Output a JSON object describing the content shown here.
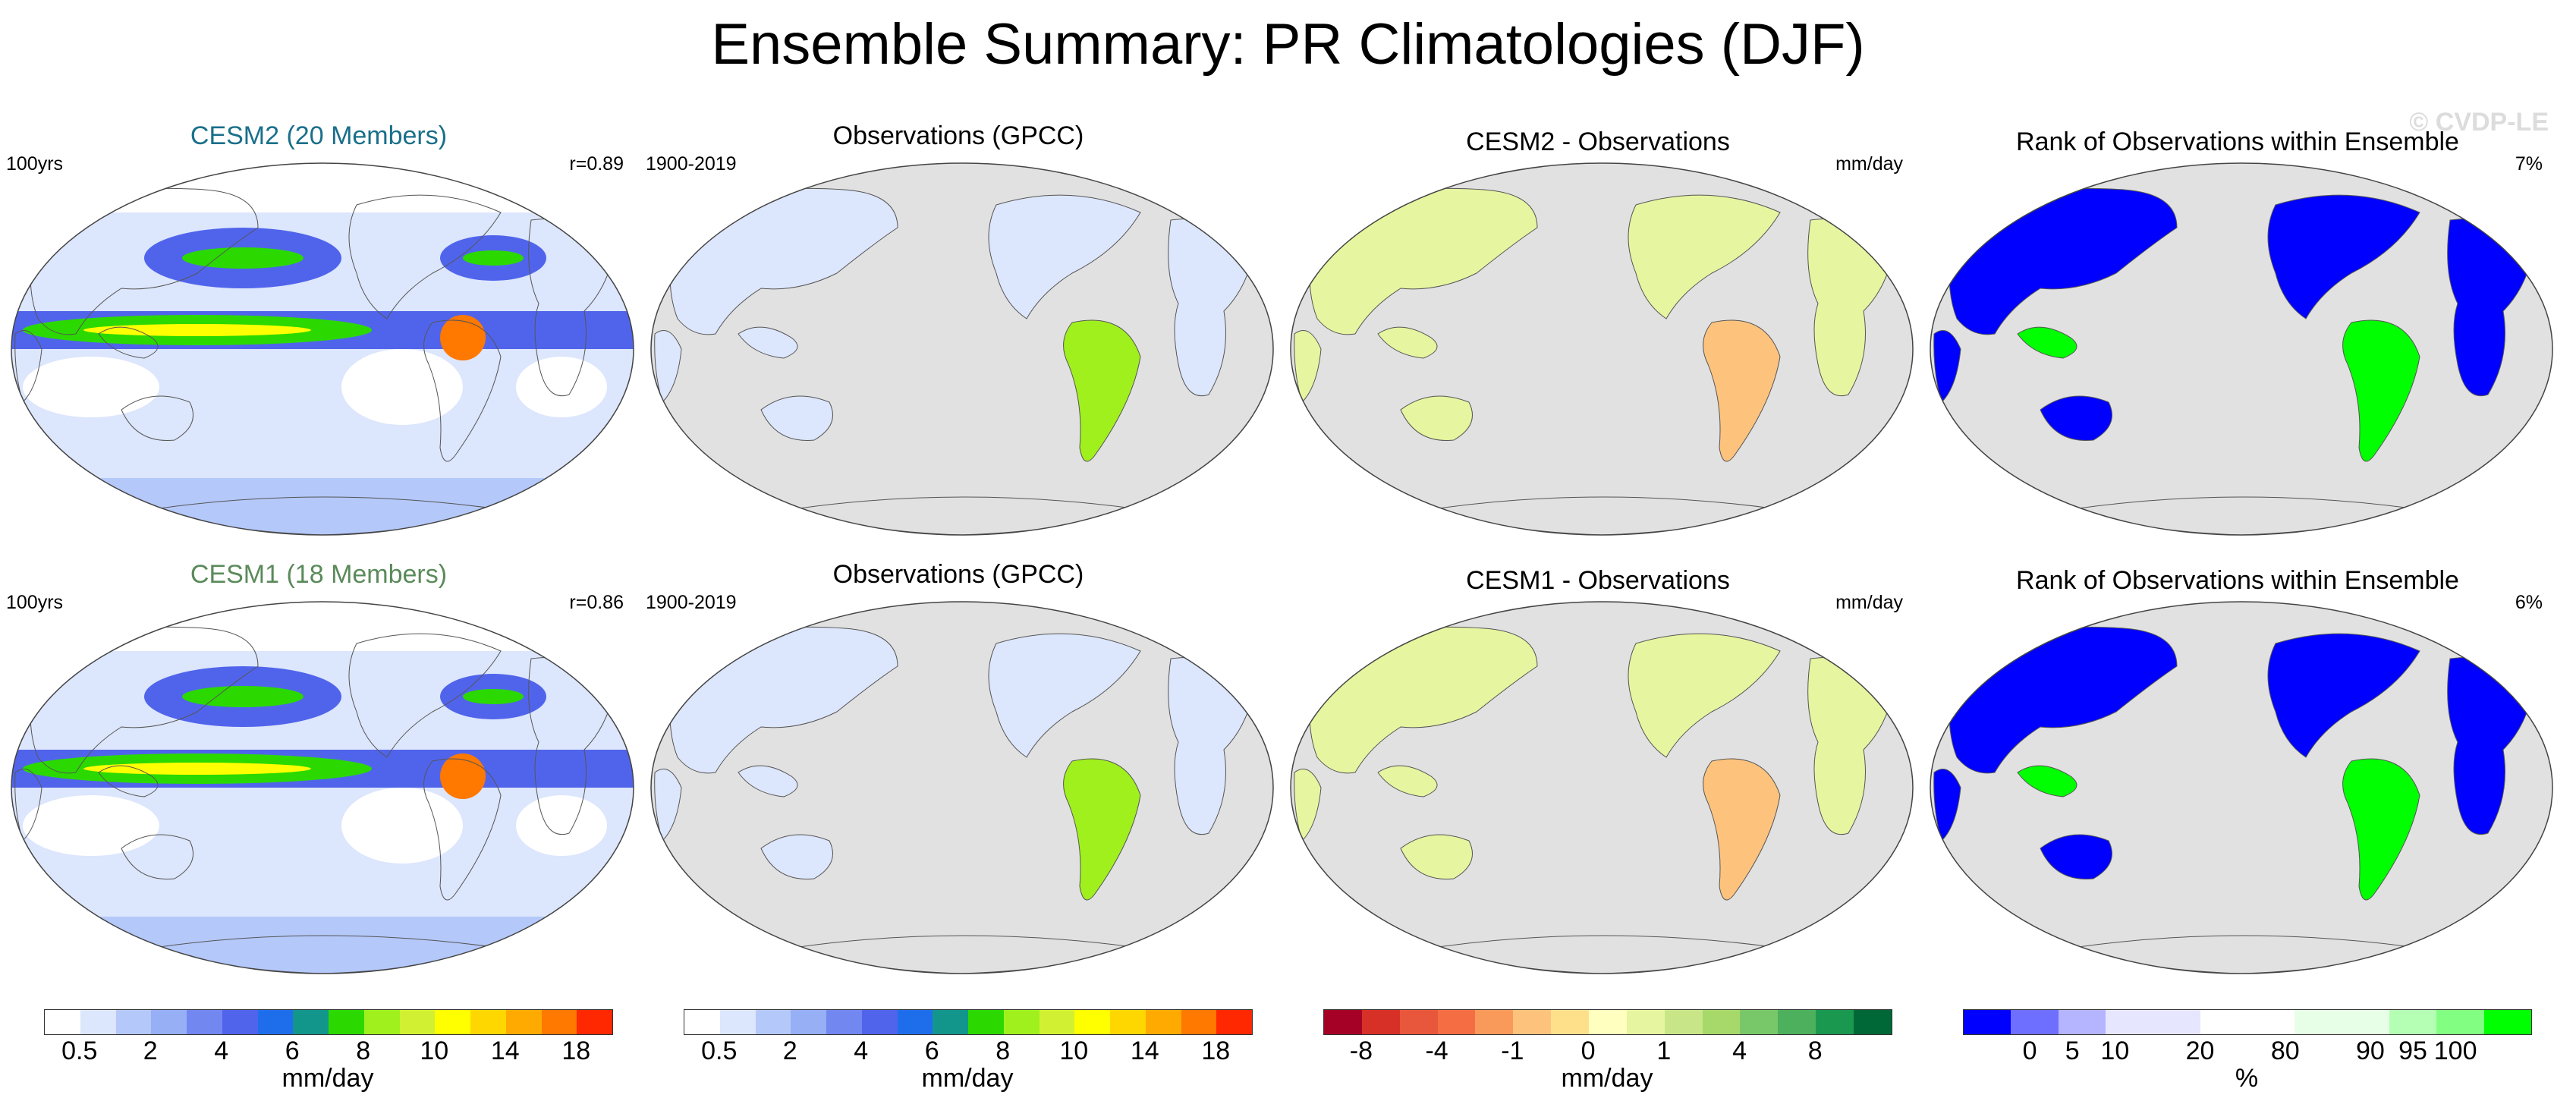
{
  "figure": {
    "title": "Ensemble Summary: PR Climatologies (DJF)",
    "watermark": "© CVDP-LE"
  },
  "rows": [
    {
      "panels": [
        {
          "title": "CESM2 (20 Members)",
          "title_color": "#1a6f8a",
          "left": "100yrs",
          "right": "r=0.89",
          "kind": "model"
        },
        {
          "title": "Observations (GPCC)",
          "title_color": "#000000",
          "left": "1900-2019",
          "right": "",
          "kind": "obs"
        },
        {
          "title": "CESM2 - Observations",
          "title_color": "#000000",
          "left": "",
          "right": "mm/day",
          "kind": "diff"
        },
        {
          "title": "Rank of Observations within Ensemble",
          "title_color": "#000000",
          "left": "",
          "right": "7%",
          "kind": "rank"
        }
      ]
    },
    {
      "panels": [
        {
          "title": "CESM1 (18 Members)",
          "title_color": "#5a8a5a",
          "left": "100yrs",
          "right": "r=0.86",
          "kind": "model"
        },
        {
          "title": "Observations (GPCC)",
          "title_color": "#000000",
          "left": "1900-2019",
          "right": "",
          "kind": "obs"
        },
        {
          "title": "CESM1 - Observations",
          "title_color": "#000000",
          "left": "",
          "right": "mm/day",
          "kind": "diff"
        },
        {
          "title": "Rank of Observations within Ensemble",
          "title_color": "#000000",
          "left": "",
          "right": "6%",
          "kind": "rank"
        }
      ]
    }
  ],
  "colorbars": [
    {
      "name": "precip-model",
      "colors": [
        "#ffffff",
        "#dce6fc",
        "#b4c8fa",
        "#96aff5",
        "#7387f0",
        "#5064eb",
        "#1e6eeb",
        "#12968c",
        "#2bd900",
        "#a0f01e",
        "#d2f032",
        "#ffff00",
        "#ffd700",
        "#ffaa00",
        "#ff7800",
        "#ff2800"
      ],
      "ticks": [
        "0.5",
        "2",
        "4",
        "6",
        "8",
        "10",
        "14",
        "18"
      ],
      "unit": "mm/day"
    },
    {
      "name": "precip-obs",
      "colors": [
        "#ffffff",
        "#dce6fc",
        "#b4c8fa",
        "#96aff5",
        "#7387f0",
        "#5064eb",
        "#1e6eeb",
        "#12968c",
        "#2bd900",
        "#a0f01e",
        "#d2f032",
        "#ffff00",
        "#ffd700",
        "#ffaa00",
        "#ff7800",
        "#ff2800"
      ],
      "ticks": [
        "0.5",
        "2",
        "4",
        "6",
        "8",
        "10",
        "14",
        "18"
      ],
      "unit": "mm/day"
    },
    {
      "name": "difference",
      "colors": [
        "#a50026",
        "#d73027",
        "#e8573c",
        "#f46d43",
        "#fa9a5a",
        "#fdc37d",
        "#fee08b",
        "#ffffbf",
        "#e6f5a0",
        "#c8e687",
        "#a6d96a",
        "#78c869",
        "#4cb05c",
        "#1a9850",
        "#006837"
      ],
      "ticks": [
        "-8",
        "-4",
        "-1",
        "0",
        "1",
        "4",
        "8"
      ],
      "unit": "mm/day"
    },
    {
      "name": "rank",
      "colors": [
        "#0000ff",
        "#6e6eff",
        "#b4b4ff",
        "#e6e6ff",
        "#e6e6ff",
        "#ffffff",
        "#ffffff",
        "#e6ffe6",
        "#e6ffe6",
        "#b4ffb4",
        "#82ff82",
        "#00ff00"
      ],
      "ticks": [
        "0",
        "5",
        "10",
        "20",
        "80",
        "90",
        "95",
        "100"
      ],
      "unit": "%"
    }
  ],
  "chart_data": [
    {
      "type": "heatmap",
      "title": "CESM2 (20 Members)",
      "subtitle_left": "100yrs",
      "subtitle_right": "r=0.89",
      "units": "mm/day",
      "levels": [
        0.5,
        2,
        4,
        6,
        8,
        10,
        14,
        18
      ]
    },
    {
      "type": "heatmap",
      "title": "Observations (GPCC)",
      "subtitle_left": "1900-2019",
      "units": "mm/day",
      "levels": [
        0.5,
        2,
        4,
        6,
        8,
        10,
        14,
        18
      ]
    },
    {
      "type": "heatmap",
      "title": "CESM2 - Observations",
      "units": "mm/day",
      "levels": [
        -8,
        -4,
        -1,
        0,
        1,
        4,
        8
      ]
    },
    {
      "type": "heatmap",
      "title": "Rank of Observations within Ensemble",
      "subtitle_right": "7%",
      "units": "%",
      "levels": [
        0,
        5,
        10,
        20,
        80,
        90,
        95,
        100
      ]
    },
    {
      "type": "heatmap",
      "title": "CESM1 (18 Members)",
      "subtitle_left": "100yrs",
      "subtitle_right": "r=0.86",
      "units": "mm/day",
      "levels": [
        0.5,
        2,
        4,
        6,
        8,
        10,
        14,
        18
      ]
    },
    {
      "type": "heatmap",
      "title": "Observations (GPCC)",
      "subtitle_left": "1900-2019",
      "units": "mm/day",
      "levels": [
        0.5,
        2,
        4,
        6,
        8,
        10,
        14,
        18
      ]
    },
    {
      "type": "heatmap",
      "title": "CESM1 - Observations",
      "units": "mm/day",
      "levels": [
        -8,
        -4,
        -1,
        0,
        1,
        4,
        8
      ]
    },
    {
      "type": "heatmap",
      "title": "Rank of Observations within Ensemble",
      "subtitle_right": "6%",
      "units": "%",
      "levels": [
        0,
        5,
        10,
        20,
        80,
        90,
        95,
        100
      ]
    }
  ]
}
